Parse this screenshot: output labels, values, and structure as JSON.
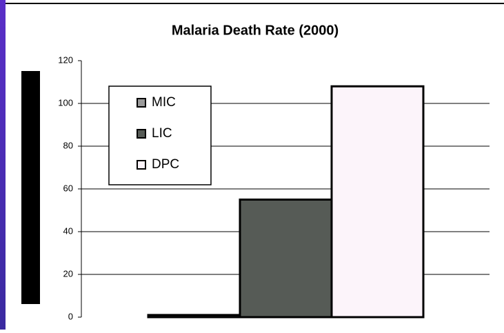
{
  "chart_data": {
    "type": "bar",
    "title": "Malaria Death Rate (2000)",
    "categories": [
      null
    ],
    "series": [
      {
        "name": "MIC",
        "color": "#9a9a9a",
        "values": [
          1
        ]
      },
      {
        "name": "LIC",
        "color": "#565b56",
        "values": [
          55
        ]
      },
      {
        "name": "DPC",
        "color": "#fcf4fa",
        "values": [
          108
        ]
      }
    ],
    "ylim": [
      0,
      120
    ],
    "yticks": [
      0,
      20,
      40,
      60,
      80,
      100,
      120
    ],
    "grid": true,
    "legend": "upper left"
  }
}
